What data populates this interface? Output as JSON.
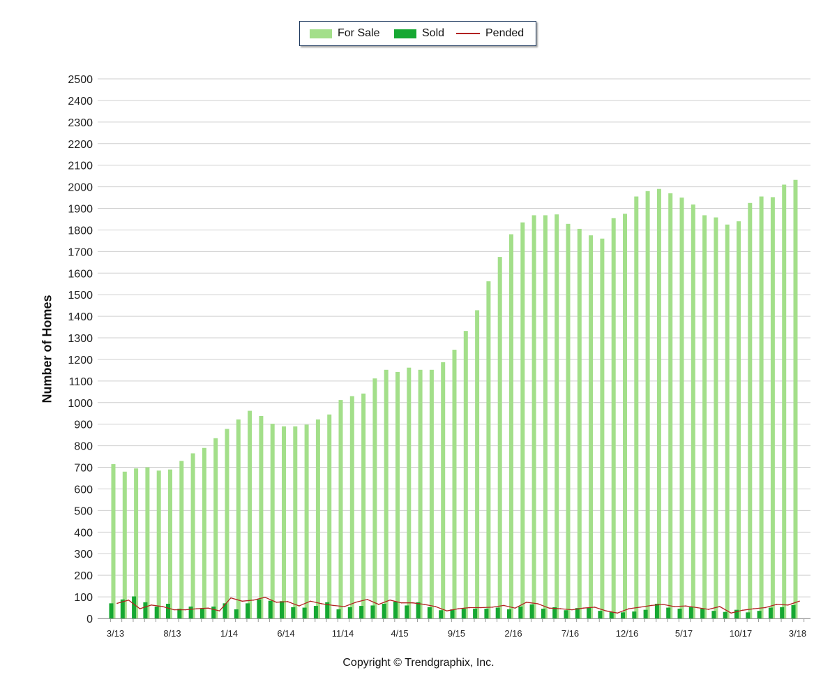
{
  "legend": {
    "for_sale": "For Sale",
    "sold": "Sold",
    "pended": "Pended"
  },
  "copyright": "Copyright © Trendgraphix, Inc.",
  "colors": {
    "for_sale": "#a3df8a",
    "sold": "#16a832",
    "pended": "#b22222",
    "grid": "#cfcfcf"
  },
  "chart_data": {
    "type": "bar",
    "ylabel": "Number of Homes",
    "ylim": [
      0,
      2500
    ],
    "yticks": [
      0,
      100,
      200,
      300,
      400,
      500,
      600,
      700,
      800,
      900,
      1000,
      1100,
      1200,
      1300,
      1400,
      1500,
      1600,
      1700,
      1800,
      1900,
      2000,
      2100,
      2200,
      2300,
      2400,
      2500
    ],
    "xtick_labels": [
      {
        "index": 0,
        "label": "3/13"
      },
      {
        "index": 5,
        "label": "8/13"
      },
      {
        "index": 10,
        "label": "1/14"
      },
      {
        "index": 15,
        "label": "6/14"
      },
      {
        "index": 20,
        "label": "11/14"
      },
      {
        "index": 25,
        "label": "4/15"
      },
      {
        "index": 30,
        "label": "9/15"
      },
      {
        "index": 35,
        "label": "2/16"
      },
      {
        "index": 40,
        "label": "7/16"
      },
      {
        "index": 45,
        "label": "12/16"
      },
      {
        "index": 50,
        "label": "5/17"
      },
      {
        "index": 55,
        "label": "10/17"
      },
      {
        "index": 60,
        "label": "3/18"
      }
    ],
    "grid": true,
    "legend_position": "top-center",
    "series": [
      {
        "name": "For Sale",
        "type": "bar",
        "values": [
          715,
          680,
          695,
          700,
          685,
          690,
          730,
          765,
          790,
          835,
          878,
          922,
          962,
          938,
          902,
          890,
          890,
          898,
          922,
          945,
          1012,
          1030,
          1042,
          1112,
          1152,
          1142,
          1162,
          1152,
          1152,
          1187,
          1245,
          1332,
          1428,
          1562,
          1675,
          1780,
          1835,
          1868,
          1868,
          1872,
          1828,
          1805,
          1775,
          1760,
          1855,
          1875,
          1955,
          1980,
          1990,
          1970,
          1950,
          1918,
          1868,
          1858,
          1825,
          1840,
          1925,
          1955,
          1952,
          2010,
          2032
        ]
      },
      {
        "name": "Sold",
        "type": "bar",
        "values": [
          70,
          88,
          102,
          75,
          55,
          68,
          45,
          55,
          45,
          55,
          70,
          42,
          70,
          88,
          82,
          80,
          52,
          50,
          58,
          75,
          42,
          52,
          58,
          60,
          68,
          78,
          60,
          75,
          52,
          38,
          42,
          45,
          45,
          45,
          50,
          42,
          55,
          65,
          45,
          52,
          38,
          48,
          50,
          35,
          30,
          28,
          32,
          40,
          68,
          50,
          45,
          52,
          45,
          35,
          30,
          40,
          28,
          35,
          50,
          52,
          62
        ]
      },
      {
        "name": "Pended",
        "type": "line",
        "values": [
          70,
          85,
          45,
          62,
          55,
          40,
          40,
          45,
          48,
          35,
          95,
          80,
          85,
          98,
          75,
          78,
          58,
          80,
          68,
          60,
          55,
          75,
          88,
          65,
          85,
          72,
          72,
          65,
          55,
          35,
          45,
          50,
          50,
          52,
          60,
          48,
          75,
          68,
          48,
          45,
          40,
          48,
          52,
          35,
          25,
          45,
          52,
          60,
          65,
          55,
          58,
          50,
          42,
          55,
          25,
          38,
          45,
          50,
          65,
          62,
          80
        ]
      }
    ]
  }
}
